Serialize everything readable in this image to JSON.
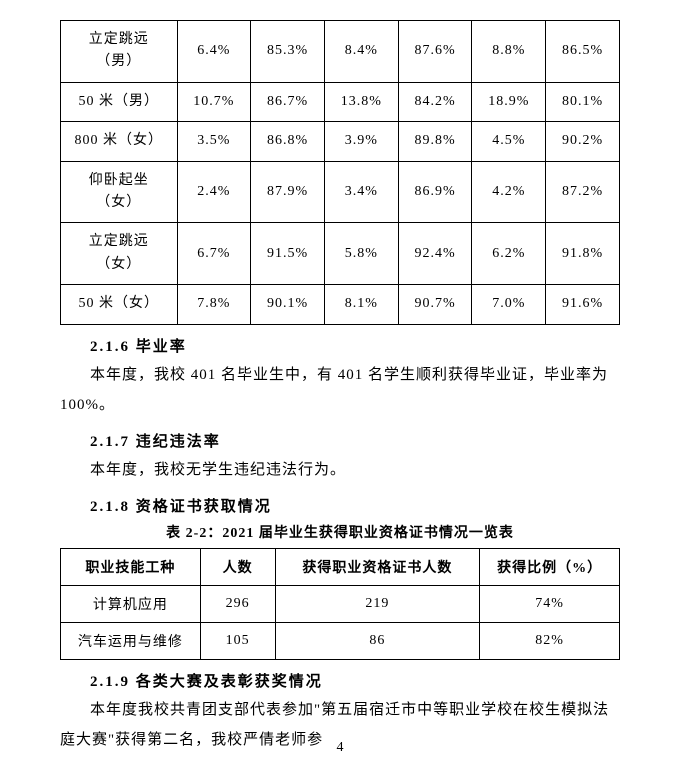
{
  "table1": {
    "rows": [
      {
        "label": "立定跳远<br>（男）",
        "c1": "6.4%",
        "c2": "85.3%",
        "c3": "8.4%",
        "c4": "87.6%",
        "c5": "8.8%",
        "c6": "86.5%"
      },
      {
        "label": "50 米（男）",
        "c1": "10.7%",
        "c2": "86.7%",
        "c3": "13.8%",
        "c4": "84.2%",
        "c5": "18.9%",
        "c6": "80.1%"
      },
      {
        "label": "800 米（女）",
        "c1": "3.5%",
        "c2": "86.8%",
        "c3": "3.9%",
        "c4": "89.8%",
        "c5": "4.5%",
        "c6": "90.2%"
      },
      {
        "label": "仰卧起坐<br>（女）",
        "c1": "2.4%",
        "c2": "87.9%",
        "c3": "3.4%",
        "c4": "86.9%",
        "c5": "4.2%",
        "c6": "87.2%"
      },
      {
        "label": "立定跳远<br>（女）",
        "c1": "6.7%",
        "c2": "91.5%",
        "c3": "5.8%",
        "c4": "92.4%",
        "c5": "6.2%",
        "c6": "91.8%"
      },
      {
        "label": "50 米（女）",
        "c1": "7.8%",
        "c2": "90.1%",
        "c3": "8.1%",
        "c4": "90.7%",
        "c5": "7.0%",
        "c6": "91.6%"
      }
    ]
  },
  "section216": {
    "heading": "2.1.6 毕业率",
    "text": "本年度，我校 401 名毕业生中，有 401 名学生顺利获得毕业证，毕业率为 100%。"
  },
  "section217": {
    "heading": "2.1.7 违纪违法率",
    "text": "本年度，我校无学生违纪违法行为。"
  },
  "section218": {
    "heading": "2.1.8 资格证书获取情况",
    "caption": "表 2-2：2021 届毕业生获得职业资格证书情况一览表"
  },
  "table2": {
    "headers": {
      "h1": "职业技能工种",
      "h2": "人数",
      "h3": "获得职业资格证书人数",
      "h4": "获得比例（%）"
    },
    "rows": [
      {
        "c1": "计算机应用",
        "c2": "296",
        "c3": "219",
        "c4": "74%"
      },
      {
        "c1": "汽车运用与维修",
        "c2": "105",
        "c3": "86",
        "c4": "82%"
      }
    ]
  },
  "section219": {
    "heading": "2.1.9 各类大赛及表彰获奖情况",
    "text": "本年度我校共青团支部代表参加\"第五届宿迁市中等职业学校在校生模拟法庭大赛\"获得第二名，我校严倩老师参"
  },
  "pagenum": "4"
}
